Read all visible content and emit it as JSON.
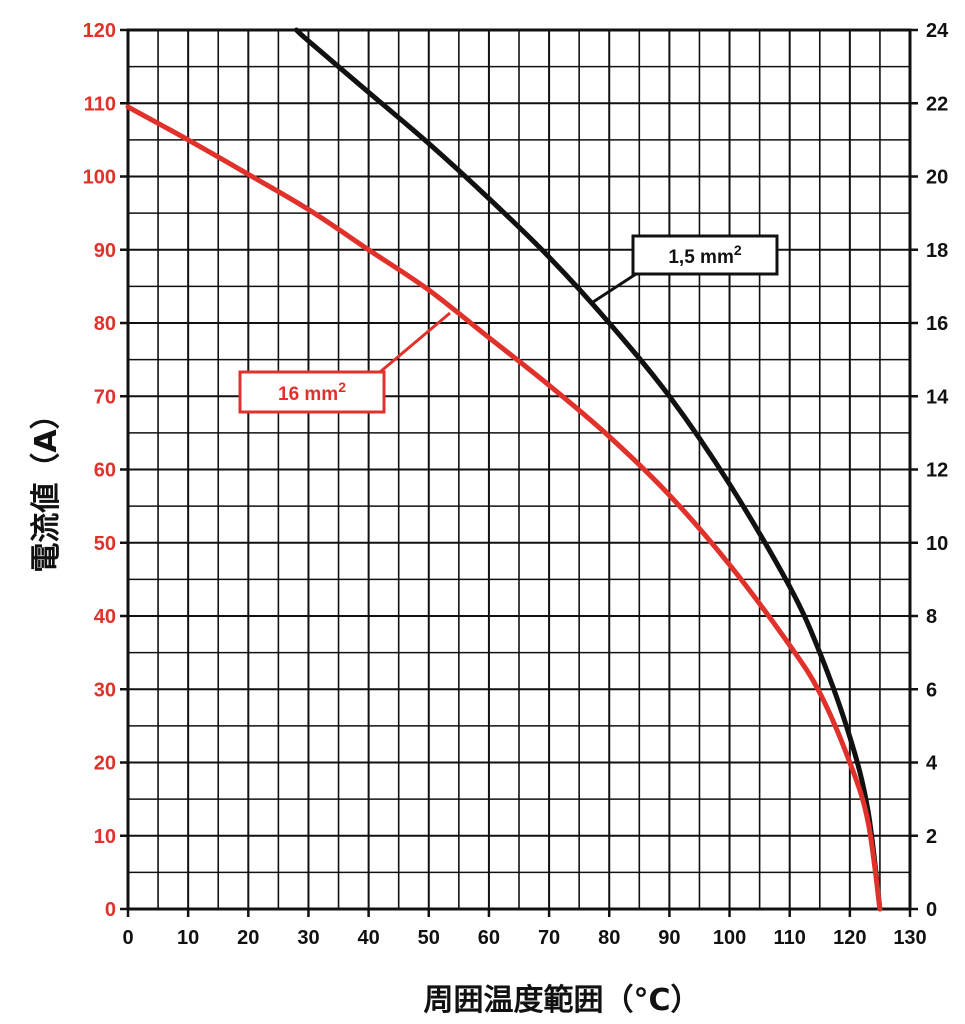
{
  "chart_data": {
    "type": "line",
    "xlabel": "周囲温度範囲（°C）",
    "ylabel_left": "電流値（A）",
    "ylabel_right": "",
    "xlim": [
      0,
      130
    ],
    "ylim_left": [
      0,
      120
    ],
    "ylim_right": [
      0,
      24
    ],
    "x_ticks": [
      0,
      10,
      20,
      30,
      40,
      50,
      60,
      70,
      80,
      90,
      100,
      110,
      120,
      130
    ],
    "y_left_ticks": [
      0,
      10,
      20,
      30,
      40,
      50,
      60,
      70,
      80,
      90,
      100,
      110,
      120
    ],
    "y_right_ticks": [
      0,
      2,
      4,
      6,
      8,
      10,
      12,
      14,
      16,
      18,
      20,
      22,
      24
    ],
    "grid": true,
    "series": [
      {
        "name": "1,5 mm²",
        "label_main": "1,5 mm",
        "label_sup": "2",
        "axis": "right",
        "color": "#111111",
        "x": [
          28,
          30,
          40,
          50,
          60,
          70,
          80,
          90,
          100,
          110,
          115,
          120,
          123,
          125
        ],
        "y": [
          24,
          23.7,
          22.3,
          20.9,
          19.4,
          17.8,
          16.0,
          14.0,
          11.6,
          8.8,
          7.0,
          4.7,
          2.7,
          0
        ]
      },
      {
        "name": "16 mm²",
        "label_main": "16 mm",
        "label_sup": "2",
        "axis": "left",
        "color": "#e0312b",
        "x": [
          0,
          10,
          20,
          30,
          40,
          50,
          60,
          70,
          80,
          90,
          100,
          110,
          115,
          120,
          123,
          125
        ],
        "y": [
          109.5,
          105,
          100.3,
          95.5,
          90,
          84.5,
          78,
          71.5,
          64.5,
          56.5,
          47,
          36,
          29.5,
          20,
          12,
          0
        ]
      }
    ]
  }
}
